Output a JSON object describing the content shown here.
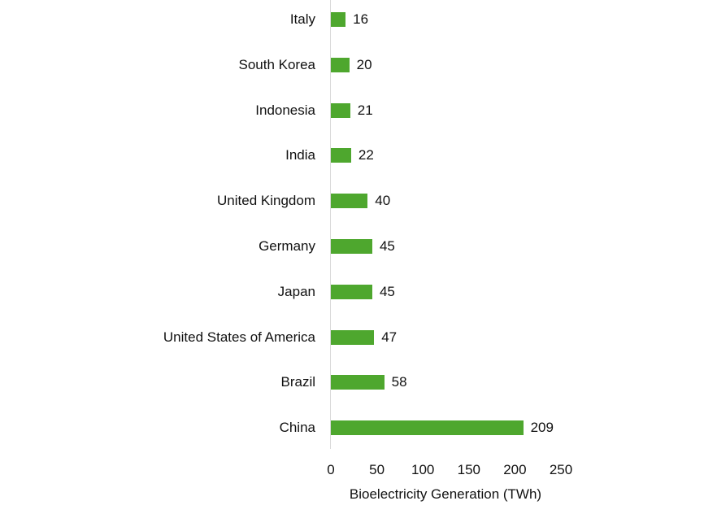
{
  "chart_data": {
    "type": "bar",
    "orientation": "horizontal",
    "title": "",
    "xlabel": "Bioelectricity Generation (TWh)",
    "ylabel": "",
    "categories": [
      "Italy",
      "South Korea",
      "Indonesia",
      "India",
      "United Kingdom",
      "Germany",
      "Japan",
      "United States of America",
      "Brazil",
      "China"
    ],
    "values": [
      16,
      20,
      21,
      22,
      40,
      45,
      45,
      47,
      58,
      209
    ],
    "value_labels": [
      "16",
      "20",
      "21",
      "22",
      "40",
      "45",
      "45",
      "47",
      "58",
      "209"
    ],
    "xlim": [
      0,
      250
    ],
    "xticks": [
      "0",
      "50",
      "100",
      "150",
      "200",
      "250"
    ],
    "grid": false,
    "legend": null,
    "bar_color": "#4ea72e"
  }
}
